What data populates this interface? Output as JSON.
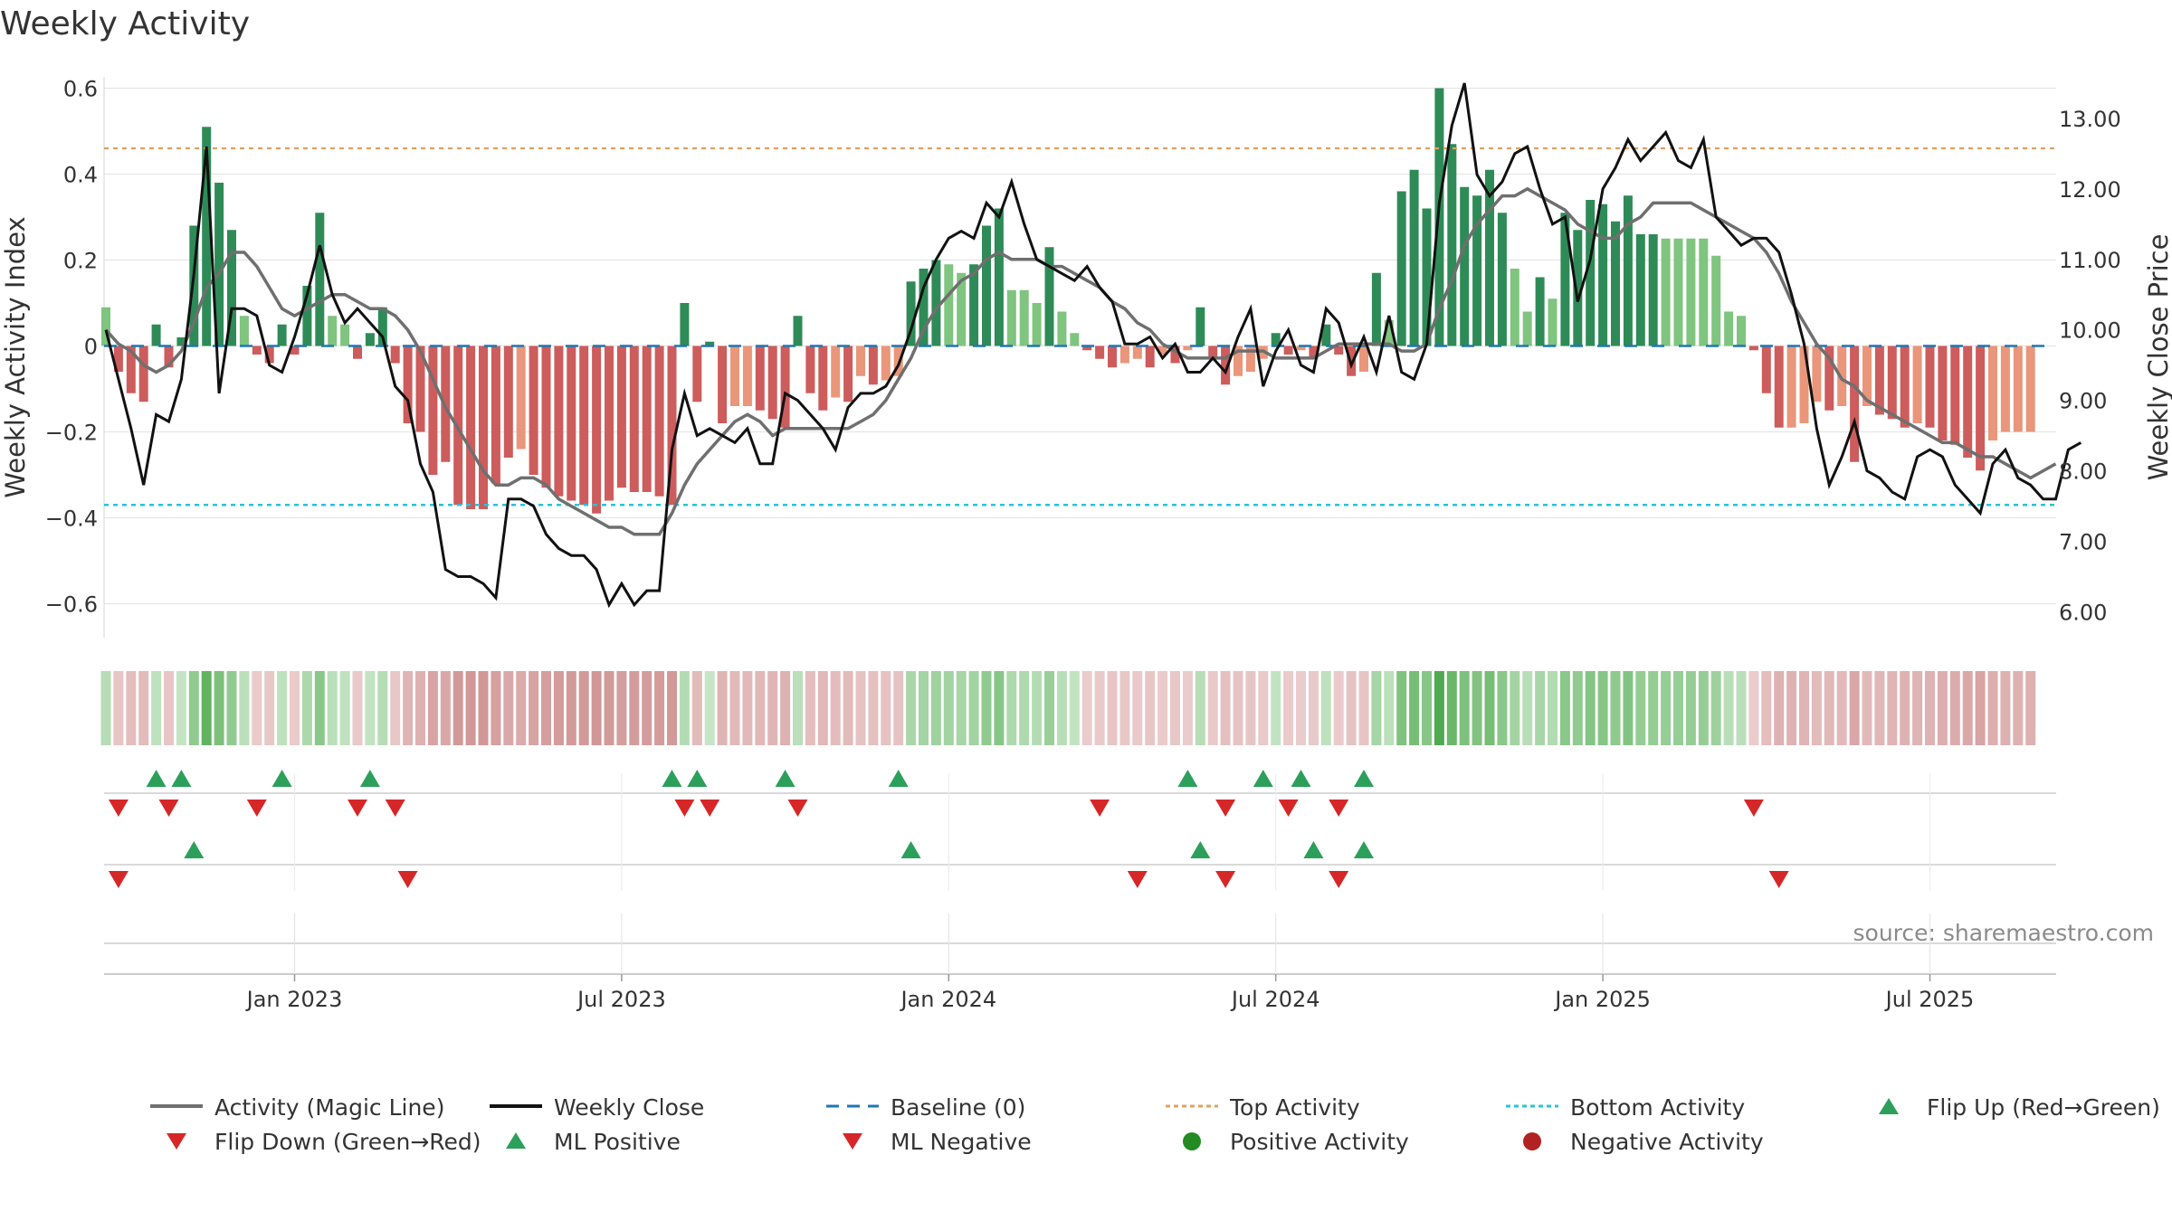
{
  "chart_data": {
    "type": "bar",
    "title": "Weekly Activity",
    "ylabel_left": "Weekly Activity Index",
    "ylabel_right": "Weekly Close Price",
    "source": "source: sharemaestro.com",
    "ylim_left": [
      -0.66,
      0.62
    ],
    "ylim_right": [
      5.75,
      13.55
    ],
    "yticks_left": [
      {
        "v": 0.6,
        "label": "0.6"
      },
      {
        "v": 0.4,
        "label": "0.4"
      },
      {
        "v": 0.2,
        "label": "0.2"
      },
      {
        "v": 0,
        "label": "0"
      },
      {
        "v": -0.2,
        "label": "−0.2"
      },
      {
        "v": -0.4,
        "label": "−0.4"
      },
      {
        "v": -0.6,
        "label": "−0.6"
      }
    ],
    "yticks_right": [
      {
        "v": 13,
        "label": "13.00"
      },
      {
        "v": 12,
        "label": "12.00"
      },
      {
        "v": 11,
        "label": "11.00"
      },
      {
        "v": 10,
        "label": "10.00"
      },
      {
        "v": 9,
        "label": "9.00"
      },
      {
        "v": 8,
        "label": "8.00"
      },
      {
        "v": 7,
        "label": "7.00"
      },
      {
        "v": 6,
        "label": "6.00"
      }
    ],
    "xticks": [
      {
        "week": 15,
        "label": "Jan 2023"
      },
      {
        "week": 41,
        "label": "Jul 2023"
      },
      {
        "week": 67,
        "label": "Jan 2024"
      },
      {
        "week": 93,
        "label": "Jul 2024"
      },
      {
        "week": 119,
        "label": "Jan 2025"
      },
      {
        "week": 145,
        "label": "Jul 2025"
      }
    ],
    "top_activity": 0.46,
    "bottom_activity": -0.37,
    "baseline": 0,
    "activity": [
      0.09,
      -0.06,
      -0.11,
      -0.13,
      0.05,
      -0.05,
      0.02,
      0.28,
      0.51,
      0.38,
      0.27,
      0.07,
      -0.02,
      -0.04,
      0.05,
      -0.02,
      0.14,
      0.31,
      0.07,
      0.05,
      -0.03,
      0.03,
      0.09,
      -0.04,
      -0.18,
      -0.2,
      -0.3,
      -0.27,
      -0.37,
      -0.38,
      -0.38,
      -0.32,
      -0.26,
      -0.24,
      -0.3,
      -0.33,
      -0.35,
      -0.36,
      -0.37,
      -0.39,
      -0.36,
      -0.33,
      -0.34,
      -0.34,
      -0.35,
      -0.37,
      0.1,
      -0.13,
      0.01,
      -0.18,
      -0.14,
      -0.14,
      -0.15,
      -0.17,
      -0.19,
      0.07,
      -0.11,
      -0.15,
      -0.12,
      -0.13,
      -0.07,
      -0.09,
      -0.08,
      -0.07,
      0.15,
      0.18,
      0.2,
      0.19,
      0.17,
      0.19,
      0.28,
      0.32,
      0.13,
      0.13,
      0.1,
      0.23,
      0.08,
      0.03,
      -0.01,
      -0.03,
      -0.05,
      -0.04,
      -0.03,
      -0.05,
      -0.02,
      -0.04,
      -0.01,
      0.09,
      -0.03,
      -0.09,
      -0.07,
      -0.06,
      -0.03,
      0.03,
      -0.02,
      -0.01,
      -0.03,
      0.05,
      -0.02,
      -0.07,
      -0.06,
      0.17,
      0.06,
      0.36,
      0.41,
      0.32,
      0.6,
      0.47,
      0.37,
      0.35,
      0.41,
      0.31,
      0.18,
      0.08,
      0.16,
      0.11,
      0.31,
      0.27,
      0.34,
      0.33,
      0.29,
      0.35,
      0.26,
      0.26,
      0.25,
      0.25,
      0.25,
      0.25,
      0.21,
      0.08,
      0.07,
      -0.01,
      -0.11,
      -0.19,
      -0.19,
      -0.18,
      -0.13,
      -0.15,
      -0.14,
      -0.27,
      -0.14,
      -0.16,
      -0.17,
      -0.19,
      -0.18,
      -0.19,
      -0.22,
      -0.23,
      -0.26,
      -0.29,
      -0.22,
      -0.2,
      -0.2,
      -0.2
    ],
    "weekly_close": [
      10.0,
      9.3,
      8.6,
      7.8,
      8.8,
      8.7,
      9.3,
      10.8,
      12.6,
      9.1,
      10.3,
      10.3,
      10.2,
      9.5,
      9.4,
      9.9,
      10.5,
      11.2,
      10.5,
      10.1,
      10.3,
      10.1,
      9.9,
      9.2,
      9.0,
      8.1,
      7.7,
      6.6,
      6.5,
      6.5,
      6.4,
      6.2,
      7.6,
      7.6,
      7.5,
      7.1,
      6.9,
      6.8,
      6.8,
      6.6,
      6.1,
      6.4,
      6.1,
      6.3,
      6.3,
      8.3,
      9.1,
      8.5,
      8.6,
      8.5,
      8.4,
      8.6,
      8.1,
      8.1,
      9.1,
      9.0,
      8.8,
      8.6,
      8.3,
      8.9,
      9.1,
      9.1,
      9.2,
      9.5,
      10.0,
      10.6,
      11.0,
      11.3,
      11.4,
      11.3,
      11.8,
      11.6,
      12.1,
      11.5,
      11.0,
      10.9,
      10.8,
      10.7,
      10.9,
      10.6,
      10.4,
      9.8,
      9.8,
      9.9,
      9.6,
      9.8,
      9.4,
      9.4,
      9.6,
      9.4,
      9.9,
      10.3,
      9.2,
      9.7,
      10.0,
      9.5,
      9.4,
      10.3,
      10.1,
      9.5,
      9.9,
      9.4,
      10.2,
      9.4,
      9.3,
      9.8,
      11.8,
      12.9,
      13.5,
      12.2,
      11.9,
      12.1,
      12.5,
      12.6,
      12.0,
      11.5,
      11.6,
      10.4,
      11.0,
      12.0,
      12.3,
      12.7,
      12.4,
      12.6,
      12.8,
      12.4,
      12.3,
      12.7,
      11.6,
      11.4,
      11.2,
      11.3,
      11.3,
      11.1,
      10.5,
      9.8,
      8.6,
      7.8,
      8.2,
      8.7,
      8.0,
      7.9,
      7.7,
      7.6,
      8.2,
      8.3,
      8.2,
      7.8,
      7.6,
      7.4,
      8.1,
      8.3,
      7.9,
      7.8,
      7.6,
      7.6,
      8.3,
      8.4
    ],
    "magic_line": [
      10.0,
      9.8,
      9.7,
      9.5,
      9.4,
      9.5,
      9.7,
      10.1,
      10.6,
      10.8,
      11.1,
      11.1,
      10.9,
      10.6,
      10.3,
      10.2,
      10.3,
      10.4,
      10.5,
      10.5,
      10.4,
      10.3,
      10.3,
      10.2,
      10.0,
      9.7,
      9.3,
      8.9,
      8.6,
      8.3,
      8.0,
      7.8,
      7.8,
      7.9,
      7.9,
      7.8,
      7.6,
      7.5,
      7.4,
      7.3,
      7.2,
      7.2,
      7.1,
      7.1,
      7.1,
      7.4,
      7.8,
      8.1,
      8.3,
      8.5,
      8.7,
      8.8,
      8.7,
      8.5,
      8.6,
      8.6,
      8.6,
      8.6,
      8.6,
      8.6,
      8.7,
      8.8,
      9.0,
      9.3,
      9.6,
      10.0,
      10.3,
      10.5,
      10.7,
      10.8,
      11.0,
      11.1,
      11.0,
      11.0,
      11.0,
      10.9,
      10.9,
      10.8,
      10.7,
      10.6,
      10.4,
      10.3,
      10.1,
      10.0,
      9.8,
      9.7,
      9.6,
      9.6,
      9.6,
      9.6,
      9.7,
      9.7,
      9.7,
      9.6,
      9.6,
      9.6,
      9.6,
      9.7,
      9.8,
      9.8,
      9.8,
      9.8,
      9.8,
      9.7,
      9.7,
      9.8,
      10.3,
      10.7,
      11.2,
      11.5,
      11.7,
      11.9,
      11.9,
      12.0,
      11.9,
      11.8,
      11.7,
      11.5,
      11.4,
      11.3,
      11.3,
      11.5,
      11.6,
      11.8,
      11.8,
      11.8,
      11.8,
      11.7,
      11.6,
      11.5,
      11.4,
      11.3,
      11.1,
      10.8,
      10.4,
      10.1,
      9.8,
      9.6,
      9.3,
      9.2,
      9.0,
      8.9,
      8.8,
      8.7,
      8.6,
      8.5,
      8.4,
      8.4,
      8.3,
      8.2,
      8.2,
      8.1,
      8.0,
      7.9,
      8.0,
      8.1
    ],
    "heat_strip_colors": "derived from activity: green for positive, red for negative, intensity by magnitude",
    "flip_up_weeks": [
      4,
      6,
      14,
      21,
      45,
      47,
      54,
      63,
      86,
      92,
      95,
      100
    ],
    "flip_down_weeks": [
      1,
      5,
      12,
      20,
      23,
      46,
      48,
      55,
      79,
      89,
      94,
      98,
      131
    ],
    "ml_positive_weeks": [
      7,
      64,
      87,
      96,
      100
    ],
    "ml_negative_weeks": [
      1,
      24,
      82,
      89,
      98,
      133
    ],
    "legend": [
      {
        "label": "Activity (Magic Line)",
        "marker": "line",
        "color": "#6f6f6f"
      },
      {
        "label": "Weekly Close",
        "marker": "line",
        "color": "#111111"
      },
      {
        "label": "Baseline (0)",
        "marker": "dashed",
        "color": "#1f77b4"
      },
      {
        "label": "Top Activity",
        "marker": "dotted",
        "color": "#e0a060"
      },
      {
        "label": "Bottom Activity",
        "marker": "dotted",
        "color": "#27c4d8"
      },
      {
        "label": "Flip Up (Red→Green)",
        "marker": "triangle-up",
        "color": "#2ca05a"
      },
      {
        "label": "Flip Down (Green→Red)",
        "marker": "triangle-down",
        "color": "#d62728"
      },
      {
        "label": "ML Positive",
        "marker": "triangle-up",
        "color": "#2ca05a"
      },
      {
        "label": "ML Negative",
        "marker": "triangle-down",
        "color": "#d62728"
      },
      {
        "label": "Positive Activity",
        "marker": "circle",
        "color": "#228b22"
      },
      {
        "label": "Negative Activity",
        "marker": "circle",
        "color": "#b22222"
      }
    ]
  },
  "colors": {
    "pos_strong": "#2e8b57",
    "pos_light": "#7fc47f",
    "neg_strong": "#cd5c5c",
    "neg_light": "#e9967a",
    "grid": "#e6e6e6"
  }
}
